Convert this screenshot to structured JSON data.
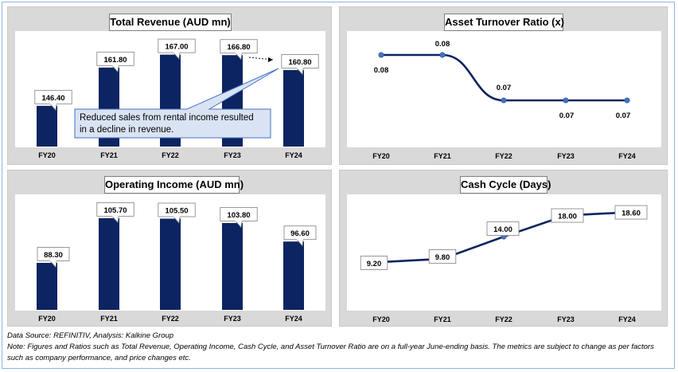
{
  "colors": {
    "bar": "#0c2461",
    "line": "#0c2461",
    "marker": "#4472c4",
    "callout_bg": "#dae3f3",
    "callout_border": "#4472c4"
  },
  "chart_data": [
    {
      "type": "bar",
      "title": "Total Revenue (AUD mn)",
      "categories": [
        "FY20",
        "FY21",
        "FY22",
        "FY23",
        "FY24"
      ],
      "values": [
        146.4,
        161.8,
        167.0,
        166.8,
        160.8
      ],
      "labels": [
        "146.40",
        "161.80",
        "167.00",
        "166.80",
        "160.80"
      ],
      "ylim": [
        130,
        172
      ],
      "annotation": "Reduced sales from rental income resulted in a decline in revenue."
    },
    {
      "type": "line",
      "title": "Asset Turnover Ratio (x)",
      "categories": [
        "FY20",
        "FY21",
        "FY22",
        "FY23",
        "FY24"
      ],
      "values": [
        0.08,
        0.08,
        0.07,
        0.07,
        0.07
      ],
      "labels": [
        "0.08",
        "0.08",
        "0.07",
        "0.07",
        "0.07"
      ],
      "smooth": true
    },
    {
      "type": "bar",
      "title": "Operating Income (AUD mn)",
      "categories": [
        "FY20",
        "FY21",
        "FY22",
        "FY23",
        "FY24"
      ],
      "values": [
        88.3,
        105.7,
        105.5,
        103.8,
        96.6
      ],
      "labels": [
        "88.30",
        "105.70",
        "105.50",
        "103.80",
        "96.60"
      ],
      "ylim": [
        70,
        110
      ]
    },
    {
      "type": "line",
      "title": "Cash Cycle (Days)",
      "categories": [
        "FY20",
        "FY21",
        "FY22",
        "FY23",
        "FY24"
      ],
      "values": [
        9.2,
        9.8,
        14.0,
        18.0,
        18.6
      ],
      "labels": [
        "9.20",
        "9.80",
        "14.00",
        "18.00",
        "18.60"
      ],
      "ylim": [
        0,
        22
      ]
    }
  ],
  "footer": {
    "source": "Data Source: REFINITIV, Analysis: Kalkine Group",
    "note": "Note: Figures and Ratios such as Total Revenue, Operating Income, Cash Cycle, and Asset Turnover Ratio are on a full-year June-ending basis. The metrics are subject to change as per factors such as company performance, and price changes etc."
  }
}
